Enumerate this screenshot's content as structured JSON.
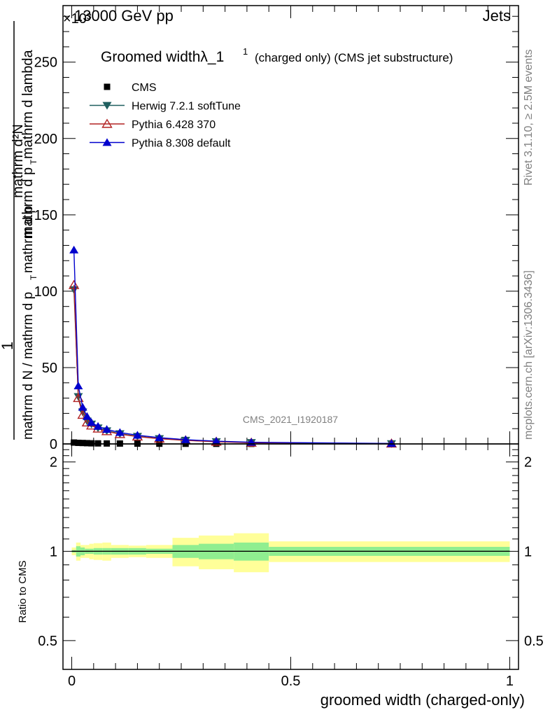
{
  "header": {
    "energy_label": "13000 GeV pp",
    "category": "Jets",
    "exponent_label": "×10³"
  },
  "side": {
    "rivet": "Rivet 3.1.10, ≥ 2.5M events",
    "mcplots": "mcplots.cern.ch [arXiv:1306.3436]"
  },
  "chart_data": [
    {
      "type": "line",
      "title_main": "Groomed widthλ_1",
      "title_sup": "1",
      "title_tail": "(charged only) (CMS jet substructure)",
      "ylabel_numer": "mathrm d²N",
      "ylabel_numer_sup": "2",
      "ylabel_numer_sub": "T",
      "ylabel_numer_text": "mathrm d p",
      "ylabel_numer_tail": "mathrm d lambda",
      "ylabel_denom_one": "1",
      "ylabel_denom": "mathrm d N / mathrm d p",
      "ylabel_denom_sub": "T",
      "ylabel_denom_tail": "mathrm d p",
      "ylabel_denom_sub2": "T",
      "watermark": "CMS_2021_I1920187",
      "xlim": [
        -0.02,
        1.02
      ],
      "ylim": [
        0,
        287
      ],
      "yticks": [
        0,
        50,
        100,
        150,
        200,
        250
      ],
      "yticklabels": [
        "0",
        "50",
        "100",
        "150",
        "200",
        "250"
      ],
      "legend_position": "top-left",
      "series": [
        {
          "name": "CMS",
          "color": "#000000",
          "marker": "square",
          "x": [
            0.005,
            0.015,
            0.025,
            0.035,
            0.045,
            0.06,
            0.08,
            0.11,
            0.15,
            0.2,
            0.26,
            0.33,
            0.41,
            0.73
          ],
          "y": [
            0.9,
            0.7,
            0.6,
            0.5,
            0.4,
            0.35,
            0.3,
            0.25,
            0.2,
            0.15,
            0.1,
            0.08,
            0.05,
            0.02
          ]
        },
        {
          "name": "Herwig 7.2.1 softTune",
          "color": "#1f5f5f",
          "marker": "triangle-down",
          "x": [
            0.005,
            0.015,
            0.025,
            0.035,
            0.045,
            0.06,
            0.08,
            0.11,
            0.15,
            0.2,
            0.26,
            0.33,
            0.41,
            0.73
          ],
          "y": [
            101,
            31,
            21,
            15,
            13,
            10.5,
            8.6,
            6.7,
            5,
            3.5,
            2.4,
            1.5,
            0.9,
            0.2
          ]
        },
        {
          "name": "Pythia 6.428 370",
          "color": "#b22222",
          "marker": "triangle-up-open",
          "x": [
            0.005,
            0.015,
            0.025,
            0.035,
            0.045,
            0.06,
            0.08,
            0.11,
            0.15,
            0.2,
            0.26,
            0.33,
            0.41,
            0.73
          ],
          "y": [
            104,
            30,
            19,
            14,
            12,
            10,
            8.3,
            6.4,
            4.8,
            3.4,
            2.3,
            1.4,
            0.8,
            0.2
          ]
        },
        {
          "name": "Pythia 8.308 default",
          "color": "#0000cd",
          "marker": "triangle-up",
          "x": [
            0.005,
            0.015,
            0.025,
            0.035,
            0.045,
            0.06,
            0.08,
            0.11,
            0.15,
            0.2,
            0.26,
            0.33,
            0.41,
            0.73
          ],
          "y": [
            127,
            38,
            24,
            18,
            14,
            11.5,
            9.5,
            7.5,
            5.7,
            4.1,
            2.8,
            1.8,
            1.1,
            0.3
          ]
        }
      ]
    },
    {
      "type": "area",
      "ylabel": "Ratio to CMS",
      "xlabel": "groomed width (charged-only)",
      "xlim": [
        -0.02,
        1.02
      ],
      "ylim": [
        0.4,
        2.3
      ],
      "yticks": [
        0.5,
        1,
        2
      ],
      "yticklabels": [
        "0.5",
        "1",
        "2"
      ],
      "xticks": [
        0,
        0.5,
        1
      ],
      "xticklabels": [
        "0",
        "0.5",
        "1"
      ],
      "reference_line": 1,
      "bins": [
        {
          "x0": 0.0,
          "x1": 0.01,
          "stat": 0.01,
          "total": 0.03
        },
        {
          "x0": 0.01,
          "x1": 0.02,
          "stat": 0.04,
          "total": 0.07
        },
        {
          "x0": 0.02,
          "x1": 0.03,
          "stat": 0.03,
          "total": 0.05
        },
        {
          "x0": 0.03,
          "x1": 0.04,
          "stat": 0.02,
          "total": 0.05
        },
        {
          "x0": 0.04,
          "x1": 0.05,
          "stat": 0.02,
          "total": 0.06
        },
        {
          "x0": 0.05,
          "x1": 0.07,
          "stat": 0.025,
          "total": 0.065
        },
        {
          "x0": 0.07,
          "x1": 0.09,
          "stat": 0.025,
          "total": 0.07
        },
        {
          "x0": 0.09,
          "x1": 0.13,
          "stat": 0.025,
          "total": 0.05
        },
        {
          "x0": 0.13,
          "x1": 0.17,
          "stat": 0.025,
          "total": 0.045
        },
        {
          "x0": 0.17,
          "x1": 0.23,
          "stat": 0.02,
          "total": 0.05
        },
        {
          "x0": 0.23,
          "x1": 0.29,
          "stat": 0.05,
          "total": 0.11
        },
        {
          "x0": 0.29,
          "x1": 0.37,
          "stat": 0.06,
          "total": 0.13
        },
        {
          "x0": 0.37,
          "x1": 0.45,
          "stat": 0.07,
          "total": 0.15
        },
        {
          "x0": 0.45,
          "x1": 1.0,
          "stat": 0.035,
          "total": 0.08
        }
      ],
      "colors": {
        "stat": "#90ee90",
        "total": "#ffff99"
      }
    }
  ]
}
